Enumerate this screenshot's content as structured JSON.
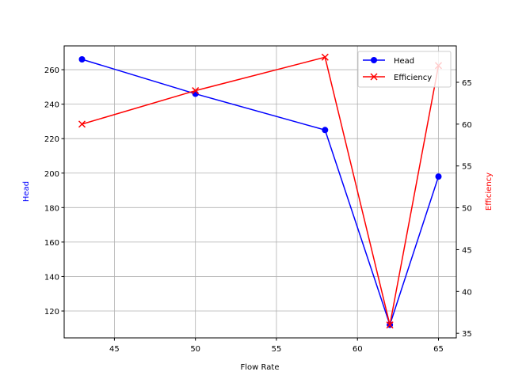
{
  "chart_data": {
    "type": "line",
    "title": "",
    "xlabel": "Flow Rate",
    "ylabel_left": "Head",
    "ylabel_right": "Efficiency",
    "xlim": [
      41.9,
      66.1
    ],
    "ylim_left": [
      104.4,
      273.8
    ],
    "ylim_right": [
      34.45,
      69.35
    ],
    "x_ticks": [
      45,
      50,
      55,
      60,
      65
    ],
    "y_left_ticks": [
      120,
      140,
      160,
      180,
      200,
      220,
      240,
      260
    ],
    "y_right_ticks": [
      35,
      40,
      45,
      50,
      55,
      60,
      65
    ],
    "grid": true,
    "legend_position": "top-right",
    "x": [
      43,
      50,
      58,
      62,
      65
    ],
    "series": [
      {
        "name": "Head",
        "axis": "left",
        "values": [
          266,
          246,
          225,
          112,
          198
        ],
        "color": "#0000ff",
        "marker": "circle"
      },
      {
        "name": "Efficiency",
        "axis": "right",
        "values": [
          60,
          64,
          68,
          36,
          67
        ],
        "color": "#ff0000",
        "marker": "x"
      }
    ],
    "left_label_color": "#0000ff",
    "right_label_color": "#ff0000"
  }
}
